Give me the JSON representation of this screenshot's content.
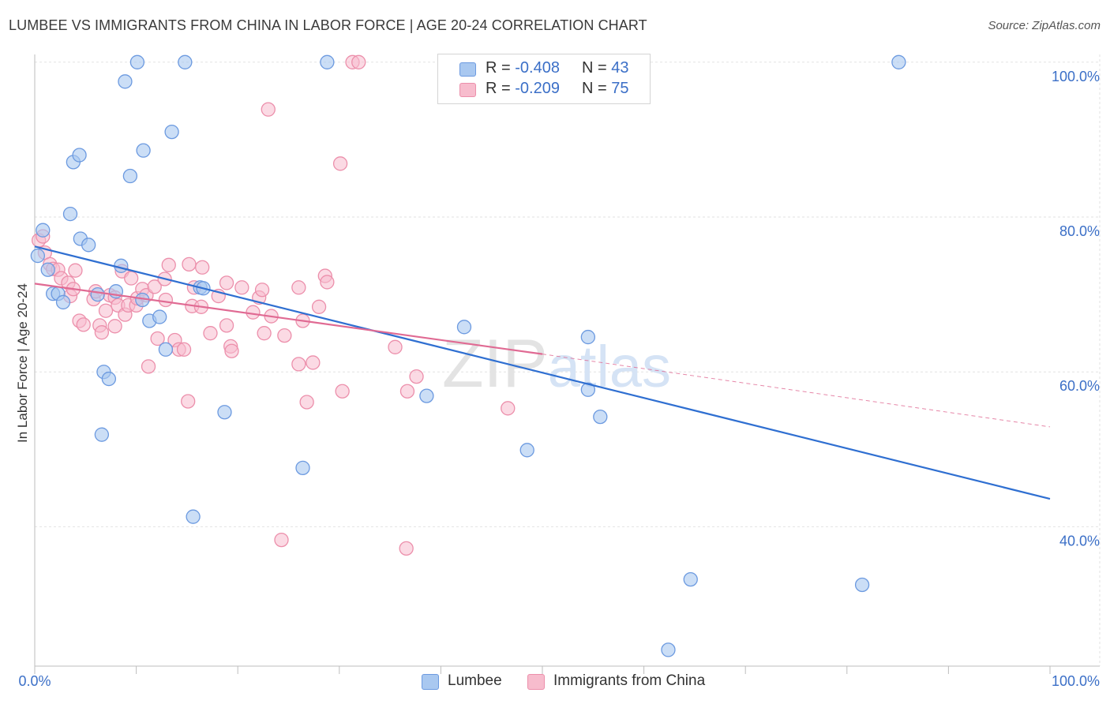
{
  "title": "LUMBEE VS IMMIGRANTS FROM CHINA IN LABOR FORCE | AGE 20-24 CORRELATION CHART",
  "source": "Source: ZipAtlas.com",
  "watermark": "ZIPatlas",
  "legend": {
    "rows": [
      {
        "r_label": "R = ",
        "r_value": "-0.408",
        "n_label": "N = ",
        "n_value": "43"
      },
      {
        "r_label": "R = ",
        "r_value": "-0.209",
        "n_label": "N = ",
        "n_value": "75"
      }
    ]
  },
  "colors": {
    "lumbee_fill": "#a9c8f0",
    "lumbee_stroke": "#6c9ae0",
    "lumbee_line": "#2f6fd1",
    "china_fill": "#f7bccd",
    "china_stroke": "#ec8fab",
    "china_line": "#e06a93",
    "axis_value": "#3b6fc7",
    "grid": "#e2e2e2"
  },
  "chart_data": {
    "type": "scatter",
    "title": "LUMBEE VS IMMIGRANTS FROM CHINA IN LABOR FORCE | AGE 20-24 CORRELATION CHART",
    "xlabel": "",
    "ylabel": "In Labor Force | Age 20-24",
    "x_tick_labels": [
      "0.0%",
      "100.0%"
    ],
    "y_tick_labels": [
      "40.0%",
      "60.0%",
      "80.0%",
      "100.0%"
    ],
    "xlim": [
      0,
      100
    ],
    "ylim": [
      22,
      101
    ],
    "y_ticks": [
      40,
      60,
      80,
      100
    ],
    "grid": true,
    "legend_placement": "top-center",
    "series": [
      {
        "name": "Lumbee",
        "R": -0.408,
        "N": 43,
        "trend": {
          "x0": 0,
          "y0": 76.2,
          "x1": 100,
          "y1": 43.6
        },
        "points": [
          [
            0.3,
            75.0
          ],
          [
            0.8,
            78.3
          ],
          [
            1.3,
            73.2
          ],
          [
            1.8,
            70.1
          ],
          [
            2.3,
            70.1
          ],
          [
            2.8,
            69.0
          ],
          [
            3.5,
            80.4
          ],
          [
            3.8,
            87.1
          ],
          [
            4.4,
            88.0
          ],
          [
            4.5,
            77.2
          ],
          [
            5.3,
            76.4
          ],
          [
            6.2,
            70.0
          ],
          [
            6.6,
            51.9
          ],
          [
            6.8,
            60.0
          ],
          [
            7.3,
            59.1
          ],
          [
            8.0,
            70.4
          ],
          [
            8.5,
            73.7
          ],
          [
            8.9,
            97.5
          ],
          [
            9.4,
            85.3
          ],
          [
            10.1,
            100.0
          ],
          [
            10.7,
            88.6
          ],
          [
            10.6,
            69.3
          ],
          [
            11.3,
            66.6
          ],
          [
            12.3,
            67.1
          ],
          [
            12.9,
            62.9
          ],
          [
            13.5,
            91.0
          ],
          [
            14.8,
            100.0
          ],
          [
            15.6,
            41.3
          ],
          [
            16.3,
            70.9
          ],
          [
            16.6,
            70.8
          ],
          [
            18.7,
            54.8
          ],
          [
            26.4,
            47.6
          ],
          [
            28.8,
            100.0
          ],
          [
            38.6,
            56.9
          ],
          [
            42.3,
            65.8
          ],
          [
            48.5,
            49.9
          ],
          [
            54.5,
            64.5
          ],
          [
            54.5,
            57.7
          ],
          [
            55.7,
            54.2
          ],
          [
            64.6,
            33.2
          ],
          [
            62.4,
            24.1
          ],
          [
            81.5,
            32.5
          ],
          [
            85.1,
            100.0
          ]
        ]
      },
      {
        "name": "Immigrants from China",
        "R": -0.209,
        "N": 75,
        "trend": {
          "x0": 0,
          "y0": 71.4,
          "x1": 50,
          "y1": 62.3
        },
        "trend_dashed": {
          "x0": 50,
          "y0": 62.3,
          "x1": 100,
          "y1": 52.9
        },
        "points": [
          [
            0.4,
            77.0
          ],
          [
            0.8,
            77.5
          ],
          [
            1.0,
            75.4
          ],
          [
            1.5,
            73.9
          ],
          [
            1.8,
            73.3
          ],
          [
            2.3,
            73.2
          ],
          [
            2.6,
            72.1
          ],
          [
            3.3,
            71.5
          ],
          [
            3.5,
            69.8
          ],
          [
            3.8,
            70.7
          ],
          [
            4.0,
            73.1
          ],
          [
            4.4,
            66.6
          ],
          [
            4.8,
            66.1
          ],
          [
            5.8,
            69.4
          ],
          [
            6.0,
            70.4
          ],
          [
            6.4,
            66.0
          ],
          [
            6.6,
            65.1
          ],
          [
            7.0,
            67.9
          ],
          [
            7.4,
            69.9
          ],
          [
            7.9,
            69.6
          ],
          [
            7.9,
            65.9
          ],
          [
            8.2,
            68.6
          ],
          [
            8.6,
            73.0
          ],
          [
            8.9,
            67.4
          ],
          [
            9.2,
            68.6
          ],
          [
            9.5,
            72.1
          ],
          [
            10.0,
            68.6
          ],
          [
            10.1,
            69.5
          ],
          [
            10.6,
            70.7
          ],
          [
            11.0,
            69.9
          ],
          [
            11.2,
            60.7
          ],
          [
            11.8,
            71.0
          ],
          [
            12.1,
            64.3
          ],
          [
            12.8,
            72.0
          ],
          [
            12.9,
            69.3
          ],
          [
            13.2,
            73.8
          ],
          [
            13.8,
            64.1
          ],
          [
            14.2,
            62.9
          ],
          [
            14.7,
            62.9
          ],
          [
            15.1,
            56.2
          ],
          [
            15.2,
            73.9
          ],
          [
            15.5,
            68.5
          ],
          [
            15.7,
            70.9
          ],
          [
            16.4,
            68.4
          ],
          [
            16.5,
            73.5
          ],
          [
            17.3,
            65.0
          ],
          [
            18.1,
            69.8
          ],
          [
            18.9,
            66.0
          ],
          [
            18.9,
            71.5
          ],
          [
            19.3,
            63.3
          ],
          [
            19.4,
            62.7
          ],
          [
            20.4,
            70.9
          ],
          [
            21.5,
            67.7
          ],
          [
            22.1,
            69.6
          ],
          [
            22.4,
            70.6
          ],
          [
            22.6,
            65.0
          ],
          [
            23.0,
            93.9
          ],
          [
            23.3,
            67.2
          ],
          [
            24.3,
            38.3
          ],
          [
            24.6,
            64.7
          ],
          [
            26.0,
            70.9
          ],
          [
            26.0,
            61.0
          ],
          [
            26.4,
            66.6
          ],
          [
            26.8,
            56.1
          ],
          [
            27.4,
            61.2
          ],
          [
            28.0,
            68.4
          ],
          [
            28.6,
            72.4
          ],
          [
            28.8,
            71.6
          ],
          [
            30.1,
            86.9
          ],
          [
            30.3,
            57.5
          ],
          [
            31.3,
            100.0
          ],
          [
            31.9,
            100.0
          ],
          [
            35.5,
            63.2
          ],
          [
            36.6,
            37.2
          ],
          [
            36.7,
            57.5
          ],
          [
            37.6,
            59.4
          ],
          [
            46.6,
            55.3
          ]
        ]
      }
    ]
  }
}
